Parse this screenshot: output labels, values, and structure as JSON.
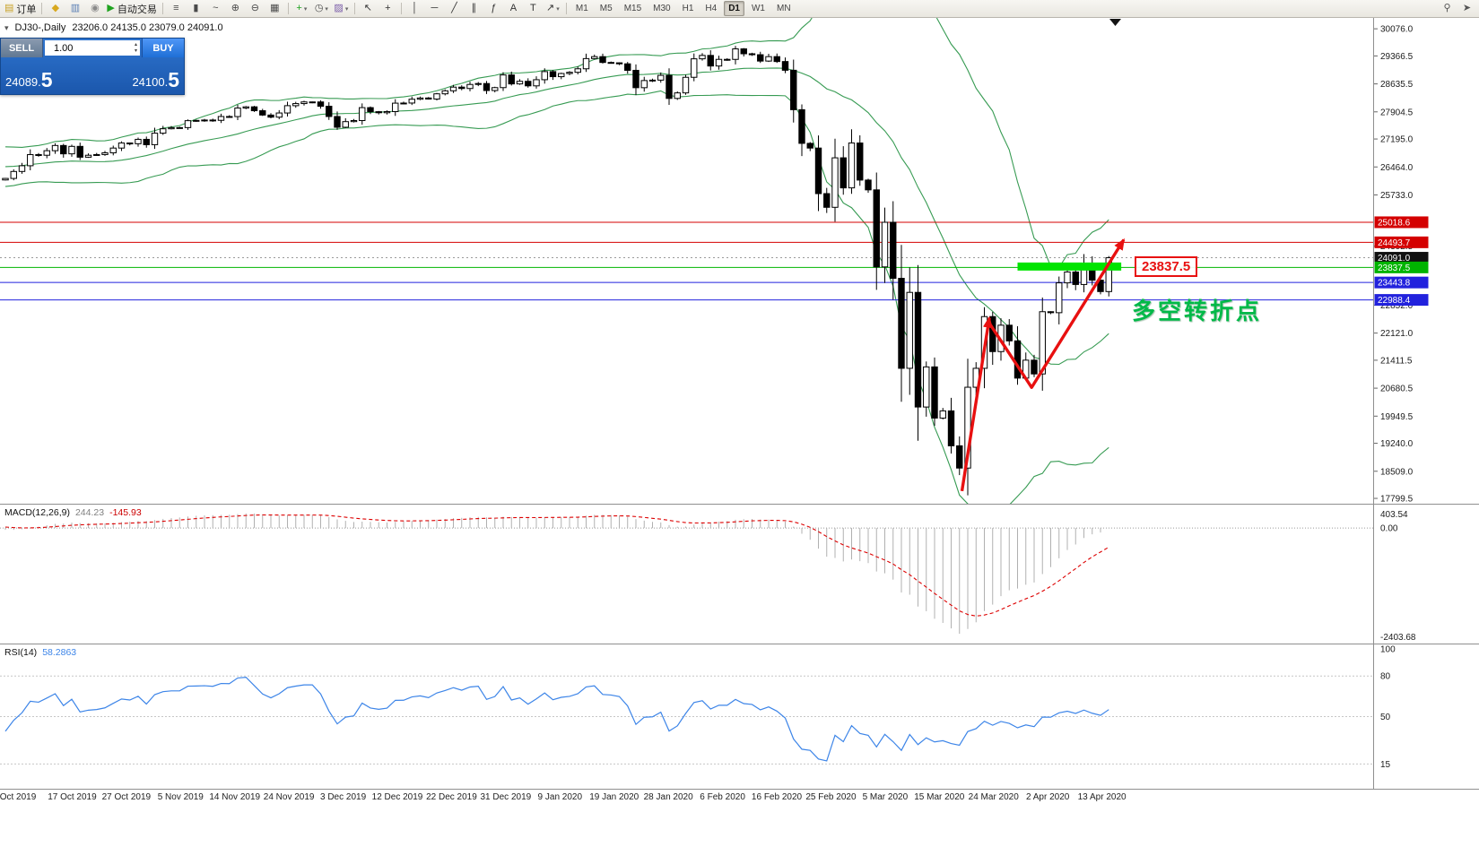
{
  "toolbar": {
    "items": [
      {
        "t": "btn",
        "name": "new-order-button",
        "glyph": "▤",
        "glyph_color": "#c9a227",
        "label": "订单"
      },
      {
        "t": "sep"
      },
      {
        "t": "btn",
        "name": "chart-window-button",
        "glyph": "◆",
        "glyph_color": "#d8a81e"
      },
      {
        "t": "btn",
        "name": "profiles-button",
        "glyph": "▥",
        "glyph_color": "#5b7fb4"
      },
      {
        "t": "btn",
        "name": "alerts-button",
        "glyph": "◉",
        "glyph_color": "#8a8a8a"
      },
      {
        "t": "btn",
        "name": "autotrade-button",
        "glyph": "▶",
        "glyph_color": "#1fa31f",
        "label": "自动交易"
      },
      {
        "t": "sep"
      },
      {
        "t": "btn",
        "name": "bars-chart-button",
        "glyph": "≡",
        "glyph_color": "#4a4a4a"
      },
      {
        "t": "btn",
        "name": "candles-chart-button",
        "glyph": "▮",
        "glyph_color": "#4a4a4a"
      },
      {
        "t": "btn",
        "name": "line-chart-button",
        "glyph": "~",
        "glyph_color": "#4a4a4a"
      },
      {
        "t": "btn",
        "name": "zoom-in-button",
        "glyph": "⊕",
        "glyph_color": "#4a4a4a"
      },
      {
        "t": "btn",
        "name": "zoom-out-button",
        "glyph": "⊖",
        "glyph_color": "#4a4a4a"
      },
      {
        "t": "btn",
        "name": "tile-windows-button",
        "glyph": "▦",
        "glyph_color": "#4a4a4a"
      },
      {
        "t": "sep"
      },
      {
        "t": "btn",
        "name": "new-chart-button",
        "glyph": "+",
        "glyph_color": "#1fa31f",
        "arrow": true
      },
      {
        "t": "btn",
        "name": "periods-button",
        "glyph": "◷",
        "glyph_color": "#4a4a4a",
        "arrow": true
      },
      {
        "t": "btn",
        "name": "template-button",
        "glyph": "▨",
        "glyph_color": "#7a5ca8",
        "arrow": true
      },
      {
        "t": "sep"
      },
      {
        "t": "btn",
        "name": "cursor-button",
        "glyph": "↖",
        "glyph_color": "#333333"
      },
      {
        "t": "btn",
        "name": "crosshair-button",
        "glyph": "+",
        "glyph_color": "#333333"
      },
      {
        "t": "sep"
      },
      {
        "t": "btn",
        "name": "vertical-line-button",
        "glyph": "│",
        "glyph_color": "#333333"
      },
      {
        "t": "btn",
        "name": "horizontal-line-button",
        "glyph": "─",
        "glyph_color": "#333333"
      },
      {
        "t": "btn",
        "name": "trendline-button",
        "glyph": "╱",
        "glyph_color": "#333333"
      },
      {
        "t": "btn",
        "name": "channel-button",
        "glyph": "∥",
        "glyph_color": "#333333"
      },
      {
        "t": "btn",
        "name": "fibonacci-button",
        "glyph": "ƒ",
        "glyph_color": "#333333"
      },
      {
        "t": "btn",
        "name": "text-button",
        "glyph": "A",
        "glyph_color": "#333333"
      },
      {
        "t": "btn",
        "name": "text-label-button",
        "glyph": "T",
        "glyph_color": "#333333"
      },
      {
        "t": "btn",
        "name": "arrows-button",
        "glyph": "↗",
        "glyph_color": "#333333",
        "arrow": true
      },
      {
        "t": "sep"
      },
      {
        "t": "tf",
        "name": "timeframe-m1-button",
        "label": "M1"
      },
      {
        "t": "tf",
        "name": "timeframe-m5-button",
        "label": "M5"
      },
      {
        "t": "tf",
        "name": "timeframe-m15-button",
        "label": "M15"
      },
      {
        "t": "tf",
        "name": "timeframe-m30-button",
        "label": "M30"
      },
      {
        "t": "tf",
        "name": "timeframe-h1-button",
        "label": "H1"
      },
      {
        "t": "tf",
        "name": "timeframe-h4-button",
        "label": "H4"
      },
      {
        "t": "tf",
        "name": "timeframe-d1-button",
        "label": "D1",
        "active": true
      },
      {
        "t": "tf",
        "name": "timeframe-w1-button",
        "label": "W1"
      },
      {
        "t": "tf",
        "name": "timeframe-mn-button",
        "label": "MN"
      },
      {
        "t": "spacer"
      },
      {
        "t": "btn",
        "name": "search-button",
        "glyph": "⚲",
        "glyph_color": "#555555"
      },
      {
        "t": "btn",
        "name": "pointer-button",
        "glyph": "➤",
        "glyph_color": "#555555"
      }
    ]
  },
  "chart_header": {
    "collapse_icon": "▾",
    "title": "DJ30-,Daily",
    "ohlc": "23206.0 24135.0 23079.0 24091.0"
  },
  "trade_panel": {
    "sell_label": "SELL",
    "buy_label": "BUY",
    "volume": "1.00",
    "sell_price_small": "24089.",
    "sell_price_big": "5",
    "buy_price_small": "24100.",
    "buy_price_big": "5"
  },
  "annotations": {
    "price_label": "23837.5",
    "turning_point_text": "多空转折点"
  },
  "price_axis": {
    "ticks": [
      "30076.0",
      "29366.5",
      "28635.5",
      "27904.5",
      "27195.0",
      "26464.0",
      "25733.0",
      "24392.5",
      "22852.0",
      "22121.0",
      "21411.5",
      "20680.5",
      "19949.5",
      "19240.0",
      "18509.0",
      "17799.5"
    ],
    "tags": [
      {
        "text": "25018.6",
        "price": 25018.6,
        "color": "#d40000"
      },
      {
        "text": "24493.7",
        "price": 24493.7,
        "color": "#d40000"
      },
      {
        "text": "24091.0",
        "price": 24091.0,
        "color": "#111111"
      },
      {
        "text": "23837.5",
        "price": 23837.5,
        "color": "#00b400"
      },
      {
        "text": "23443.8",
        "price": 23443.8,
        "color": "#2222dd"
      },
      {
        "text": "22988.4",
        "price": 22988.4,
        "color": "#2222dd"
      }
    ]
  },
  "date_axis": {
    "labels": [
      "Oct 2019",
      "17 Oct 2019",
      "27 Oct 2019",
      "5 Nov 2019",
      "14 Nov 2019",
      "24 Nov 2019",
      "3 Dec 2019",
      "12 Dec 2019",
      "22 Dec 2019",
      "31 Dec 2019",
      "9 Jan 2020",
      "19 Jan 2020",
      "28 Jan 2020",
      "6 Feb 2020",
      "16 Feb 2020",
      "25 Feb 2020",
      "5 Mar 2020",
      "15 Mar 2020",
      "24 Mar 2020",
      "2 Apr 2020",
      "13 Apr 2020"
    ]
  },
  "macd": {
    "label": "MACD(12,26,9)",
    "value_main": "244.23",
    "value_signal": "-145.93",
    "axis_labels": [
      {
        "text": "403.54",
        "pos": "max"
      },
      {
        "text": "0.00",
        "pos": "zero"
      },
      {
        "text": "-2403.68",
        "pos": "min"
      }
    ]
  },
  "rsi": {
    "label": "RSI(14)",
    "value": "58.2863",
    "axis_labels": [
      {
        "text": "100",
        "value": 100
      },
      {
        "text": "80",
        "value": 80
      },
      {
        "text": "50",
        "value": 50
      },
      {
        "text": "15",
        "value": 15
      }
    ],
    "levels": [
      80,
      50,
      15
    ]
  },
  "colors": {
    "bull": "#ffffff",
    "bear": "#000000",
    "bollinger": "#379b53",
    "macd_hist": "#b0b0b0",
    "macd_signal": "#dd0000",
    "rsi_line": "#3d85e8",
    "accent_red": "#e81010",
    "accent_green": "#00c83c",
    "panel_blue": "#1d64c2"
  },
  "chart_data": {
    "type": "candlestick",
    "symbol": "DJ30-",
    "timeframe": "Daily",
    "last_ohlc": {
      "open": 23206.0,
      "high": 24135.0,
      "low": 23079.0,
      "close": 24091.0
    },
    "pre_closes": [
      26350,
      26410,
      26470,
      26520,
      26410,
      26300,
      26250,
      26180,
      26120,
      26220,
      26330,
      26450,
      26560,
      26640,
      26720,
      26800,
      26860,
      26920,
      26820,
      26700,
      26560,
      26420,
      26300,
      26180,
      26220,
      26280
    ],
    "closes": [
      26164,
      26346,
      26496,
      26787,
      26770,
      26889,
      27025,
      26807,
      27002,
      26719,
      26770,
      26788,
      26833,
      26958,
      27090,
      27071,
      27186,
      27046,
      27347,
      27462,
      27492,
      27493,
      27674,
      27681,
      27691,
      27683,
      27783,
      27781,
      28004,
      28036,
      27934,
      27821,
      27766,
      27875,
      28066,
      28121,
      28164,
      28164,
      28051,
      27783,
      27502,
      27649,
      27677,
      28015,
      27909,
      27881,
      27911,
      28132,
      28135,
      28235,
      28267,
      28239,
      28376,
      28455,
      28551,
      28515,
      28621,
      28645,
      28462,
      28538,
      28869,
      28635,
      28703,
      28584,
      28745,
      28957,
      28824,
      28907,
      28939,
      29030,
      29297,
      29348,
      29196,
      29186,
      29160,
      28990,
      28536,
      28723,
      28734,
      28859,
      28256,
      28400,
      28808,
      29291,
      29380,
      29103,
      29277,
      29276,
      29551,
      29423,
      29398,
      29232,
      29348,
      29220,
      28992,
      27961,
      27081,
      26958,
      25767,
      25409,
      26703,
      25917,
      27090,
      26121,
      25865,
      23851,
      25018,
      23553,
      21200,
      23185,
      20188,
      21237,
      19899,
      20087,
      19174,
      18592,
      20705,
      21200,
      22552,
      21637,
      22327,
      21917,
      20944,
      21413,
      21053,
      22680,
      22654,
      23434,
      23719,
      23391,
      23950,
      23504,
      23206,
      24091
    ],
    "bollinger": {
      "period": 20,
      "deviation": 2
    },
    "macd": {
      "fast": 12,
      "slow": 26,
      "signal": 9,
      "last_main": 244.23,
      "last_signal": -145.93
    },
    "rsi": {
      "period": 14,
      "last": 58.2863
    },
    "hlines": [
      {
        "price": 25018.6,
        "color": "#d40000",
        "width": 1
      },
      {
        "price": 24493.7,
        "color": "#d40000",
        "width": 1
      },
      {
        "price": 23837.5,
        "color": "#00b400",
        "width": 1
      },
      {
        "price": 23443.8,
        "color": "#2222dd",
        "width": 1
      },
      {
        "price": 22988.4,
        "color": "#2222dd",
        "width": 1
      }
    ],
    "thick_segment": {
      "price": 23860,
      "from_bar": 122,
      "to_bar": 134.5,
      "color": "#00e400",
      "width": 9
    },
    "arrows": [
      {
        "points": [
          [
            115.3,
            17990
          ],
          [
            118.6,
            22520
          ]
        ]
      },
      {
        "points": [
          [
            118.6,
            22380
          ],
          [
            123.7,
            20700
          ],
          [
            134.8,
            24560
          ]
        ]
      }
    ]
  }
}
